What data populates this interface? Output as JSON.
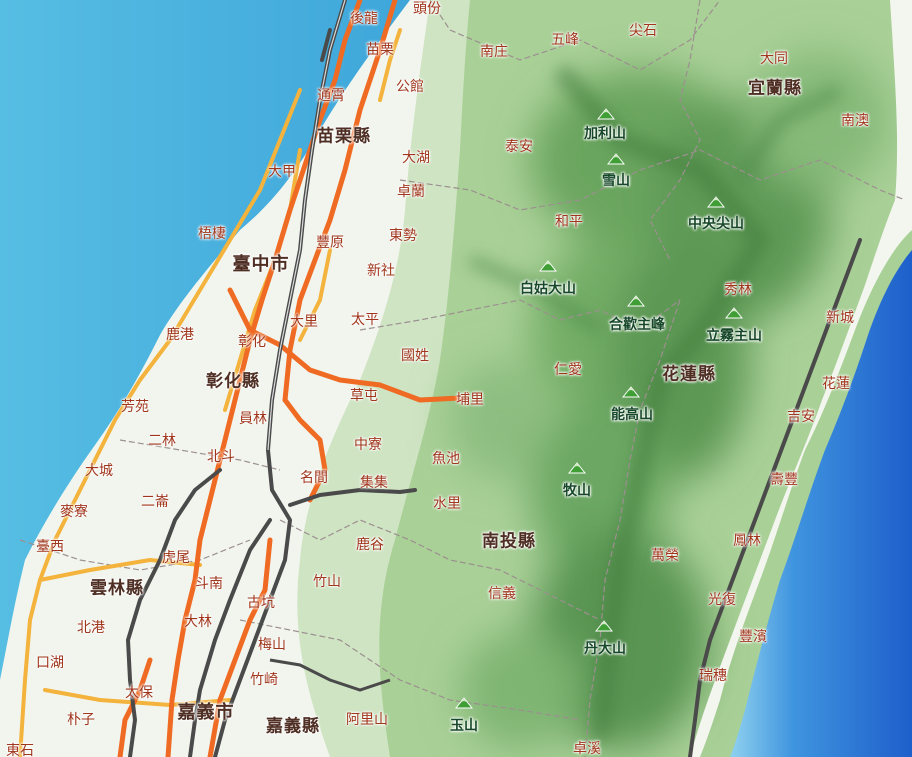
{
  "colors": {
    "sea": "#52b7dd",
    "sea_deep": "#2d78d0",
    "lowland": "#f4f6ef",
    "forest_light": "#c9e1bd",
    "forest": "#8fbf7e",
    "forest_dark": "#5f9a57",
    "freeway": "#4a4a4a",
    "expressway": "#ef6a22",
    "provincial_road": "#f3b33c",
    "boundary": "#9c8f8f",
    "town_label": "#a0361c",
    "county_label": "#4f2f24",
    "peak_label": "#17482a",
    "peak_icon": "#3f9e34"
  },
  "counties": [
    {
      "id": "miaoli",
      "name": "苗栗縣"
    },
    {
      "id": "yilan",
      "name": "宜蘭縣"
    },
    {
      "id": "changhua",
      "name": "彰化縣"
    },
    {
      "id": "hualien",
      "name": "花蓮縣"
    },
    {
      "id": "nantou",
      "name": "南投縣"
    },
    {
      "id": "yunlin",
      "name": "雲林縣"
    },
    {
      "id": "chiayi",
      "name": "嘉義縣"
    }
  ],
  "cities": [
    {
      "id": "taichung",
      "name": "臺中市"
    },
    {
      "id": "chiayi-city",
      "name": "嘉義市"
    }
  ],
  "towns": [
    {
      "id": "houlong",
      "name": "後龍"
    },
    {
      "id": "toufen",
      "name": "頭份"
    },
    {
      "id": "miaoli",
      "name": "苗栗"
    },
    {
      "id": "gongguan",
      "name": "公館"
    },
    {
      "id": "tongxiao",
      "name": "通霄"
    },
    {
      "id": "nanzhuang",
      "name": "南庄"
    },
    {
      "id": "wufeng",
      "name": "五峰"
    },
    {
      "id": "jianshi",
      "name": "尖石"
    },
    {
      "id": "datong",
      "name": "大同"
    },
    {
      "id": "nanao",
      "name": "南澳"
    },
    {
      "id": "dajia",
      "name": "大甲"
    },
    {
      "id": "dahu",
      "name": "大湖"
    },
    {
      "id": "taian",
      "name": "泰安"
    },
    {
      "id": "zhuolan",
      "name": "卓蘭"
    },
    {
      "id": "wuqi",
      "name": "梧棲"
    },
    {
      "id": "fengyuan",
      "name": "豐原"
    },
    {
      "id": "dongshi",
      "name": "東勢"
    },
    {
      "id": "heping",
      "name": "和平"
    },
    {
      "id": "xinshe",
      "name": "新社"
    },
    {
      "id": "xiulin",
      "name": "秀林"
    },
    {
      "id": "xincheng",
      "name": "新城"
    },
    {
      "id": "lugang",
      "name": "鹿港"
    },
    {
      "id": "dali",
      "name": "大里"
    },
    {
      "id": "taiping",
      "name": "太平"
    },
    {
      "id": "changhua",
      "name": "彰化"
    },
    {
      "id": "guoxing",
      "name": "國姓"
    },
    {
      "id": "renai",
      "name": "仁愛"
    },
    {
      "id": "hualien",
      "name": "花蓮"
    },
    {
      "id": "fangyuan",
      "name": "芳苑"
    },
    {
      "id": "caotun",
      "name": "草屯"
    },
    {
      "id": "puli",
      "name": "埔里"
    },
    {
      "id": "yuanlin",
      "name": "員林"
    },
    {
      "id": "jian",
      "name": "吉安"
    },
    {
      "id": "erlin",
      "name": "二林"
    },
    {
      "id": "zhongliao",
      "name": "中寮"
    },
    {
      "id": "beidou",
      "name": "北斗"
    },
    {
      "id": "yuchi",
      "name": "魚池"
    },
    {
      "id": "shoufeng",
      "name": "壽豐"
    },
    {
      "id": "dacheng",
      "name": "大城"
    },
    {
      "id": "mingjian",
      "name": "名間"
    },
    {
      "id": "jiji",
      "name": "集集"
    },
    {
      "id": "erlun",
      "name": "二崙"
    },
    {
      "id": "shuili",
      "name": "水里"
    },
    {
      "id": "mailiao",
      "name": "麥寮"
    },
    {
      "id": "taixi",
      "name": "臺西"
    },
    {
      "id": "lugu",
      "name": "鹿谷"
    },
    {
      "id": "wanrong",
      "name": "萬榮"
    },
    {
      "id": "fenglin",
      "name": "鳳林"
    },
    {
      "id": "huwei",
      "name": "虎尾"
    },
    {
      "id": "dounan",
      "name": "斗南"
    },
    {
      "id": "zhushan",
      "name": "竹山"
    },
    {
      "id": "xinyi",
      "name": "信義"
    },
    {
      "id": "guangfu",
      "name": "光復"
    },
    {
      "id": "gukeng",
      "name": "古坑"
    },
    {
      "id": "beigang",
      "name": "北港"
    },
    {
      "id": "dalin",
      "name": "大林"
    },
    {
      "id": "fengbin",
      "name": "豐濱"
    },
    {
      "id": "meishan",
      "name": "梅山"
    },
    {
      "id": "kouhu",
      "name": "口湖"
    },
    {
      "id": "zhuqi",
      "name": "竹崎"
    },
    {
      "id": "taibao",
      "name": "太保"
    },
    {
      "id": "ruisui",
      "name": "瑞穗"
    },
    {
      "id": "puzi",
      "name": "朴子"
    },
    {
      "id": "alishan",
      "name": "阿里山"
    },
    {
      "id": "dongshi-chiayi",
      "name": "東石"
    },
    {
      "id": "zhuoxi",
      "name": "卓溪"
    }
  ],
  "peaks": [
    {
      "id": "jialishan",
      "name": "加利山"
    },
    {
      "id": "xueshan",
      "name": "雪山"
    },
    {
      "id": "zhongyangjianshan",
      "name": "中央尖山"
    },
    {
      "id": "baigudashan",
      "name": "白姑大山"
    },
    {
      "id": "hehuanzhufeng",
      "name": "合歡主峰"
    },
    {
      "id": "liwuzhushan",
      "name": "立霧主山"
    },
    {
      "id": "nenggaoshan",
      "name": "能高山"
    },
    {
      "id": "mushan",
      "name": "牧山"
    },
    {
      "id": "dandashan",
      "name": "丹大山"
    },
    {
      "id": "yushan",
      "name": "玉山"
    }
  ]
}
